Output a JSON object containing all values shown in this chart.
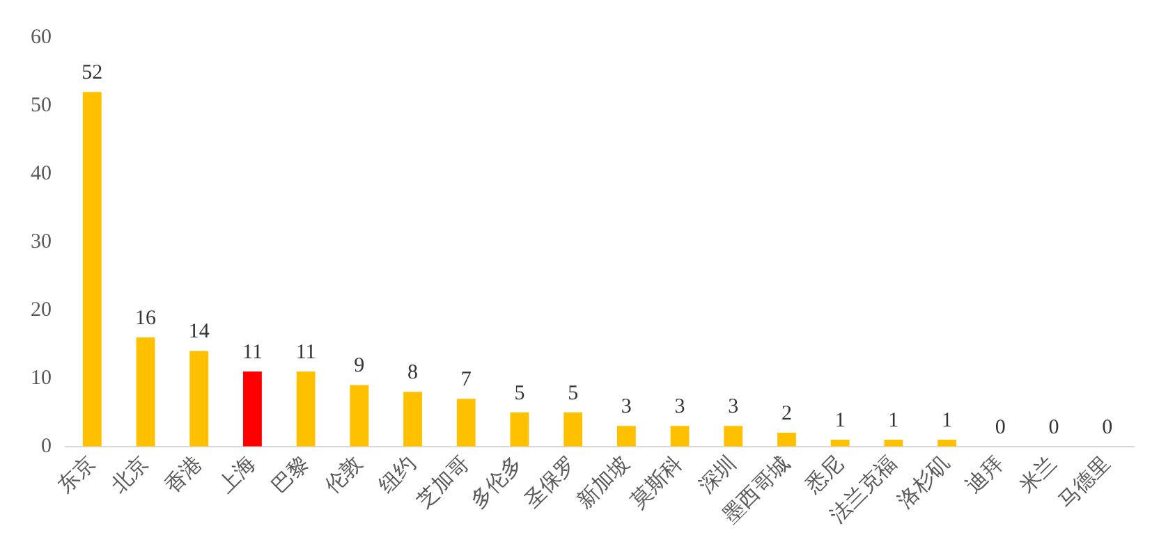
{
  "chart_data": {
    "type": "bar",
    "categories": [
      "东京",
      "北京",
      "香港",
      "上海",
      "巴黎",
      "伦敦",
      "纽约",
      "芝加哥",
      "多伦多",
      "圣保罗",
      "新加坡",
      "莫斯科",
      "深圳",
      "墨西哥城",
      "悉尼",
      "法兰克福",
      "洛杉矶",
      "迪拜",
      "米兰",
      "马德里"
    ],
    "values": [
      52,
      16,
      14,
      11,
      11,
      9,
      8,
      7,
      5,
      5,
      3,
      3,
      3,
      2,
      1,
      1,
      1,
      0,
      0,
      0
    ],
    "colors": [
      "#ffc000",
      "#ffc000",
      "#ffc000",
      "#ff0000",
      "#ffc000",
      "#ffc000",
      "#ffc000",
      "#ffc000",
      "#ffc000",
      "#ffc000",
      "#ffc000",
      "#ffc000",
      "#ffc000",
      "#ffc000",
      "#ffc000",
      "#ffc000",
      "#ffc000",
      "#ffc000",
      "#ffc000",
      "#ffc000"
    ],
    "ylim": [
      0,
      60
    ],
    "yticks": [
      0,
      10,
      20,
      30,
      40,
      50,
      60
    ],
    "grid": false,
    "data_labels": true
  }
}
